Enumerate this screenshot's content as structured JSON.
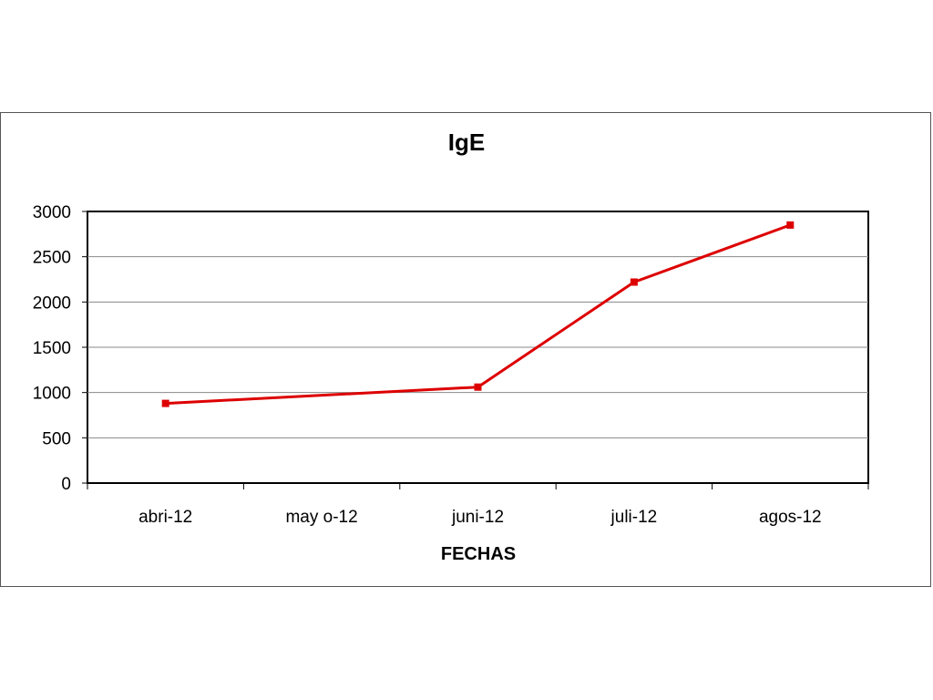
{
  "chart_data": {
    "type": "line",
    "title": "IgE",
    "xlabel": "FECHAS",
    "ylabel": "",
    "categories": [
      "abri-12",
      "may o-12",
      "juni-12",
      "juli-12",
      "agos-12"
    ],
    "x": [
      "abri-12",
      "juni-12",
      "juli-12",
      "agos-12"
    ],
    "series": [
      {
        "values": [
          880,
          1060,
          2220,
          2850
        ]
      }
    ],
    "ylim": [
      0,
      3000
    ],
    "yticks": [
      0,
      500,
      1000,
      1500,
      2000,
      2500,
      3000
    ],
    "grid": true,
    "legend": "none",
    "colors": {
      "series": "#dd0000",
      "grid": "#888888",
      "axis": "#000000"
    }
  }
}
